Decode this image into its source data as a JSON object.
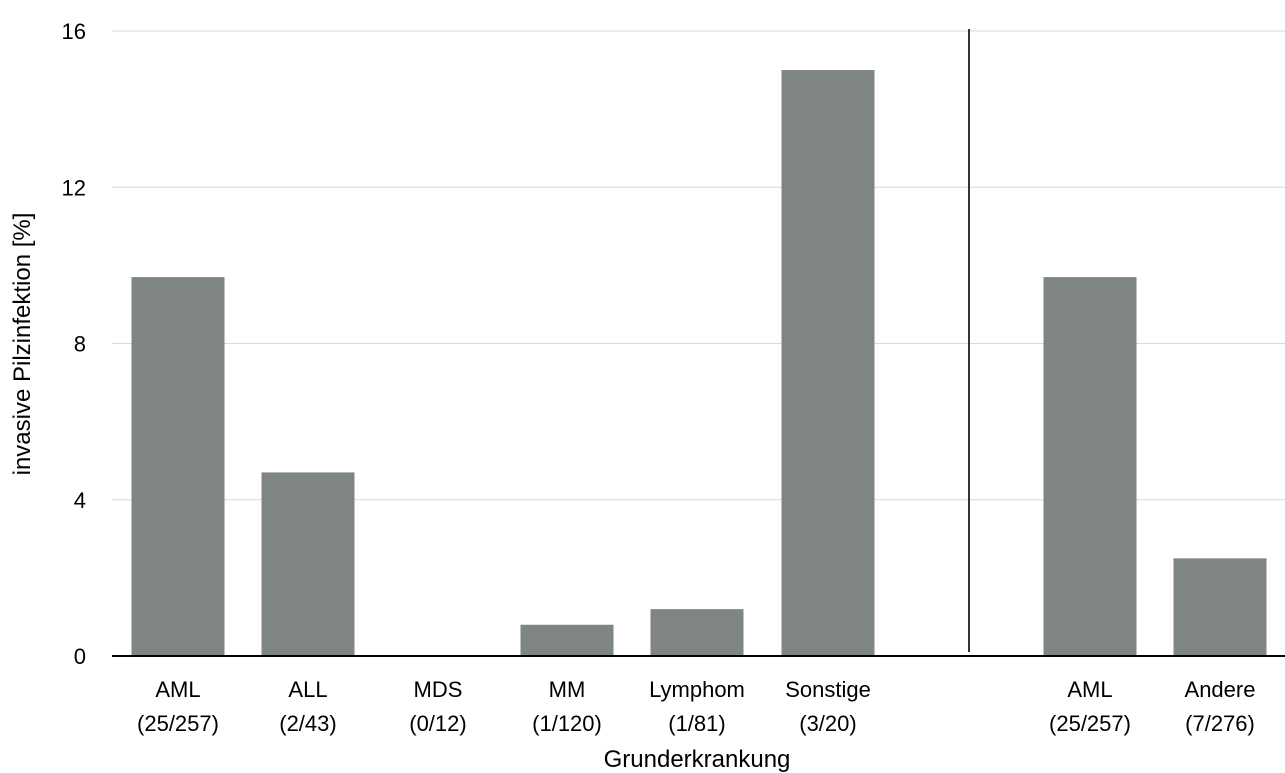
{
  "chart_data": {
    "type": "bar",
    "xlabel": "Grunderkrankung",
    "ylabel": "invasive Pilzinfektion [%]",
    "ylim": [
      0,
      16
    ],
    "yticks": [
      0,
      4,
      8,
      12,
      16
    ],
    "grid": true,
    "bar_color": "#7F8581",
    "categories": [
      {
        "name": "AML",
        "count": "(25/257)",
        "value": 9.7
      },
      {
        "name": "ALL",
        "count": "(2/43)",
        "value": 4.7
      },
      {
        "name": "MDS",
        "count": "(0/12)",
        "value": 0
      },
      {
        "name": "MM",
        "count": "(1/120)",
        "value": 0.8
      },
      {
        "name": "Lymphom",
        "count": "(1/81)",
        "value": 1.2
      },
      {
        "name": "Sonstige",
        "count": "(3/20)",
        "value": 15.0
      },
      {
        "name": "AML",
        "count": "(25/257)",
        "value": 9.7
      },
      {
        "name": "Andere",
        "count": "(7/276)",
        "value": 2.5
      }
    ]
  }
}
